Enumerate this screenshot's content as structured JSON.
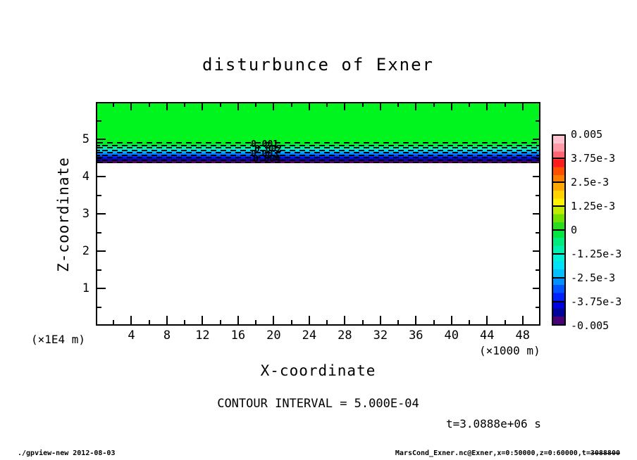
{
  "chart_data": {
    "type": "filled-contour",
    "title": "disturbunce of Exner",
    "xlabel": "X-coordinate",
    "ylabel": "Z-coordinate",
    "x_unit_label": "(×1000 m)",
    "y_unit_label": "(×1E4 m)",
    "xlim": [
      0,
      50
    ],
    "ylim": [
      0,
      6
    ],
    "x_major_ticks": [
      4,
      8,
      12,
      16,
      20,
      24,
      28,
      32,
      36,
      40,
      44,
      48
    ],
    "x_minor_ticks": [
      2,
      6,
      10,
      14,
      18,
      22,
      26,
      30,
      34,
      38,
      42,
      46
    ],
    "y_major_ticks": [
      1,
      2,
      3,
      4,
      5
    ],
    "y_minor_ticks": [
      0.5,
      1.5,
      2.5,
      3.5,
      4.5,
      5.5
    ],
    "grid": false,
    "field": {
      "description": "Exner disturbance = 0 (green) above z≈4.9; thin negative layer down to -0.005 (purple) between z≈4.9 and z≈4.4; blank below",
      "zero_region_color": "#00f51e",
      "band_z_top": 4.9,
      "band_z_bottom": 4.42,
      "band_gradient": [
        "#00f22e",
        "#00ec7c",
        "#00f0b4",
        "#00d8f4",
        "#00a0ff",
        "#0054ff",
        "#0018f0",
        "#0000b4",
        "#3a0282"
      ],
      "base_line_color": "#500064",
      "num_dashed_contours": 9,
      "contour_labels": [
        "0.001",
        "0.002",
        "0.003",
        "0.004"
      ]
    },
    "colorbar": {
      "position": "right",
      "tick_labels": [
        "0.005",
        "3.75e-3",
        "2.5e-3",
        "1.25e-3",
        "0",
        "-1.25e-3",
        "-2.5e-3",
        "-3.75e-3",
        "-0.005"
      ],
      "num_segments": 8,
      "gradient": [
        "#ffc2ce",
        "#ff9aa6",
        "#ff6470",
        "#ff1c1c",
        "#ff5000",
        "#ff7e00",
        "#ffa800",
        "#ffd200",
        "#fff400",
        "#c0ec00",
        "#72e000",
        "#2ade1c",
        "#00e840",
        "#00ec7c",
        "#00f0ae",
        "#00f0d8",
        "#00e2f6",
        "#00c0ff",
        "#0090ff",
        "#0054ff",
        "#0020ff",
        "#0000e2",
        "#000498",
        "#4a0078"
      ]
    },
    "annotations": {
      "contour_interval": "CONTOUR INTERVAL = 5.000E-04",
      "time": "t=3.0888e+06 s"
    },
    "footer": {
      "left": "./gpview-new  2012-08-03",
      "right_prefix": "MarsCond_Exner.nc@Exner,x=0:50000,z=0:60000,t=",
      "right_time": "3088800"
    }
  }
}
